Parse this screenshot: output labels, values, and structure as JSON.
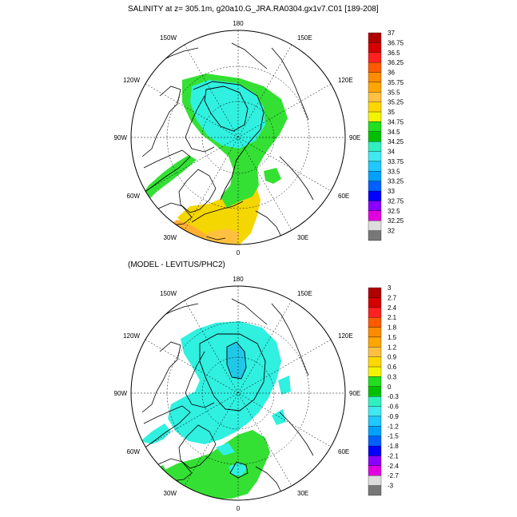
{
  "panels": [
    {
      "title": "SALINITY at z= 305.1m, g20a10.G_JRA.RA0304.gx1v7.C01 [189-208]",
      "lon_labels": {
        "top": "180",
        "bottom": "0",
        "left": "90W",
        "right": "90E",
        "ul1": "150W",
        "ul2": "120W",
        "ll1": "60W",
        "ll2": "30W",
        "ur1": "150E",
        "ur2": "120E",
        "lr1": "60E",
        "lr2": "30E"
      },
      "colorbar": [
        "37",
        "36.75",
        "36.5",
        "36.25",
        "36",
        "35.75",
        "35.5",
        "35.25",
        "35",
        "34.75",
        "34.5",
        "34.25",
        "34",
        "33.75",
        "33.5",
        "33.25",
        "33",
        "32.75",
        "32.5",
        "32.25",
        "32"
      ],
      "colors": [
        "#b00000",
        "#d60000",
        "#ff2020",
        "#ff5a00",
        "#ff8c00",
        "#ffa500",
        "#ffc040",
        "#ffd700",
        "#f4f400",
        "#20e020",
        "#00c000",
        "#30f0c0",
        "#40e8f0",
        "#20c8ff",
        "#00a0ff",
        "#0060ff",
        "#0000ff",
        "#8a00ff",
        "#e000e0",
        "#dddddd",
        "#777777"
      ]
    },
    {
      "title": "(MODEL - LEVITUS/PHC2)",
      "lon_labels": {
        "top": "180",
        "bottom": "0",
        "left": "90W",
        "right": "90E",
        "ul1": "150W",
        "ul2": "120W",
        "ll1": "60W",
        "ll2": "30W",
        "ur1": "150E",
        "ur2": "120E",
        "lr1": "60E",
        "lr2": "30E"
      },
      "colorbar": [
        "3",
        "2.7",
        "2.4",
        "2.1",
        "1.8",
        "1.5",
        "1.2",
        "0.9",
        "0.6",
        "0.3",
        "0",
        "-0.3",
        "-0.6",
        "-0.9",
        "-1.2",
        "-1.5",
        "-1.8",
        "-2.1",
        "-2.4",
        "-2.7",
        "-3"
      ],
      "colors": [
        "#b00000",
        "#d60000",
        "#ff2020",
        "#ff5a00",
        "#ff8c00",
        "#ffa500",
        "#ffc040",
        "#ffd700",
        "#f4f400",
        "#20e020",
        "#00c000",
        "#30f0c0",
        "#40e8f0",
        "#20c8ff",
        "#00a0ff",
        "#0060ff",
        "#0000ff",
        "#8a00ff",
        "#e000e0",
        "#dddddd",
        "#777777"
      ]
    }
  ]
}
